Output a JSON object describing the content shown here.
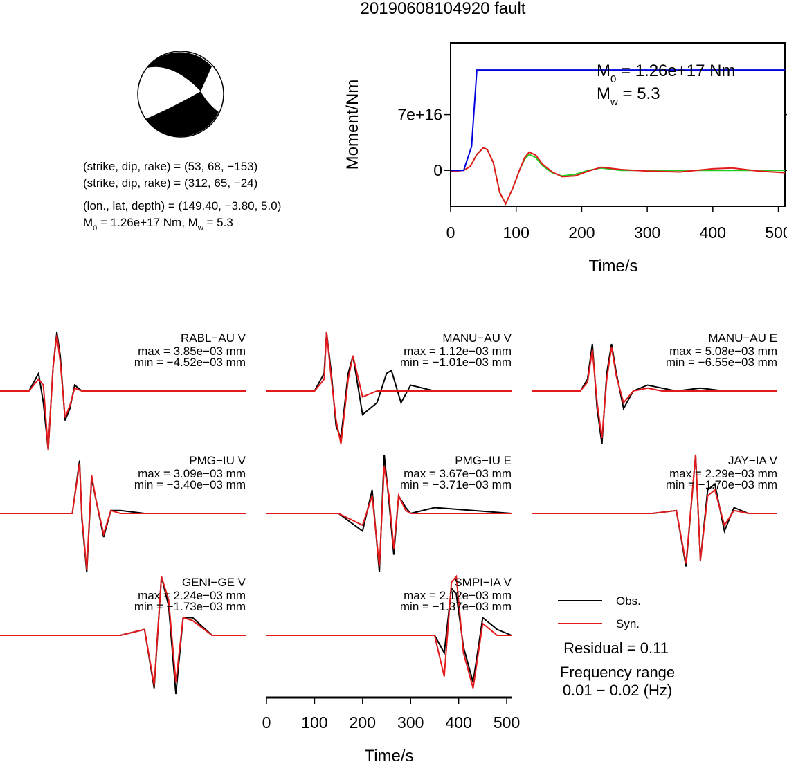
{
  "title": "20190608104920 fault",
  "mechanism": {
    "plane1": "(strike, dip, rake) = (53, 68, −153)",
    "plane2": "(strike, dip, rake) = (312, 65, −24)",
    "location": "(lon., lat, depth) = (149.40, −3.80, 5.0)",
    "moment_prefix": "M",
    "moment_sub": "0",
    "moment_mid": " = 1.26e+17 Nm, M",
    "mw_sub": "w",
    "moment_suffix": " = 5.3"
  },
  "colors": {
    "observed": "#000000",
    "synthetic": "#e31a1c",
    "moment_function": "#0000dd",
    "moment_rate_a": "#22cc22",
    "moment_rate_b": "#e31a1c"
  },
  "moment_plot": {
    "ylabel": "Moment/Nm",
    "xlabel": "Time/s",
    "annotation_m0_prefix": "M",
    "annotation_m0_sub": "0",
    "annotation_m0_value": " = 1.26e+17 Nm",
    "annotation_mw_prefix": "M",
    "annotation_mw_sub": "w",
    "annotation_mw_value": " = 5.3"
  },
  "stations": [
    {
      "name": "RABL−AU V",
      "max": "max = 3.85e−03 mm",
      "min": "min = −4.52e−03 mm"
    },
    {
      "name": "MANU−AU V",
      "max": "max = 1.12e−03 mm",
      "min": "min = −1.01e−03 mm"
    },
    {
      "name": "MANU−AU E",
      "max": "max = 5.08e−03 mm",
      "min": "min = −6.55e−03 mm"
    },
    {
      "name": "PMG−IU V",
      "max": "max = 3.09e−03 mm",
      "min": "min = −3.40e−03 mm"
    },
    {
      "name": "PMG−IU E",
      "max": "max = 3.67e−03 mm",
      "min": "min = −3.71e−03 mm"
    },
    {
      "name": "JAY−IA V",
      "max": "max = 2.29e−03 mm",
      "min": "min = −1.70e−03 mm"
    },
    {
      "name": "GENI−GE V",
      "max": "max = 2.24e−03 mm",
      "min": "min = −1.73e−03 mm"
    },
    {
      "name": "SMPI−IA V",
      "max": "max = 2.12e−03 mm",
      "min": "min = −1.37e−03 mm"
    }
  ],
  "legend": {
    "observed": "Obs.",
    "synthetic": "Syn."
  },
  "residual": "Residual = 0.11",
  "frequency_label": "Frequency range",
  "frequency_range": "0.01 − 0.02 (Hz)",
  "wave_axis": {
    "xlabel": "Time/s"
  },
  "chart_data": {
    "type": "line",
    "title": "20190608104920 fault",
    "moment_function": {
      "xlabel": "Time/s",
      "ylabel": "Moment/Nm",
      "xlim": [
        0,
        510
      ],
      "ylim": [
        -4.5e+16,
        1.6e+17
      ],
      "xticks": [
        0,
        100,
        200,
        300,
        400,
        500
      ],
      "yticks": [
        0,
        7e+16
      ],
      "ytick_labels": [
        "0",
        "7e+16"
      ],
      "x": [
        0,
        20,
        32,
        40,
        510
      ],
      "y": [
        0,
        0,
        3e+16,
        1.26e+17,
        1.26e+17
      ]
    },
    "moment_rate": {
      "green": {
        "x": [
          0,
          20,
          30,
          40,
          50,
          56,
          65,
          75,
          84,
          95,
          105,
          113,
          120,
          130,
          140,
          155,
          170,
          190,
          210,
          230,
          260,
          300,
          400,
          510
        ],
        "y": [
          -1500000000000000.0,
          0,
          5000000000000000.0,
          2e+16,
          2.85e+16,
          2.6e+16,
          1e+16,
          -2.8e+16,
          -4.2e+16,
          -2.2e+16,
          0,
          1.4e+16,
          2e+16,
          1.6e+16,
          6000000000000000.0,
          -3000000000000000.0,
          -7000000000000000.0,
          -5000000000000000.0,
          0,
          3000000000000000.0,
          0,
          0,
          0,
          0
        ]
      },
      "red": {
        "x": [
          0,
          20,
          30,
          40,
          50,
          56,
          65,
          75,
          84,
          95,
          105,
          113,
          120,
          130,
          140,
          155,
          170,
          190,
          210,
          230,
          260,
          300,
          350,
          400,
          430,
          470,
          510
        ],
        "y": [
          -1500000000000000.0,
          0,
          5000000000000000.0,
          2e+16,
          2.85e+16,
          2.6e+16,
          1e+16,
          -2.8e+16,
          -4.2e+16,
          -2.2e+16,
          0,
          1.6e+16,
          2.3e+16,
          1.9e+16,
          8000000000000000.0,
          -2000000000000000.0,
          -8000000000000000.0,
          -7000000000000000.0,
          -1000000000000000.0,
          4000000000000000.0,
          1000000000000000.0,
          -1000000000000000.0,
          -2000000000000000.0,
          2000000000000000.0,
          3000000000000000.0,
          -1000000000000000.0,
          -3000000000000000.0
        ]
      }
    },
    "waveforms": {
      "xlabel": "Time/s",
      "xlim": [
        0,
        510
      ],
      "xticks": [
        0,
        100,
        200,
        300,
        400,
        500
      ],
      "amplitude_range": [
        -1,
        1
      ],
      "traces": [
        {
          "station": "RABL−AU V",
          "obs": {
            "t": [
              0,
              60,
              80,
              90,
              100,
              110,
              118,
              125,
              135,
              145,
              155,
              170,
              200,
              300,
              510
            ],
            "a": [
              0,
              0,
              0.3,
              -0.2,
              -1.0,
              0.4,
              1.0,
              0.6,
              -0.5,
              -0.3,
              0.1,
              0,
              0,
              0,
              0
            ]
          },
          "syn": {
            "t": [
              0,
              60,
              80,
              90,
              100,
              110,
              118,
              125,
              135,
              145,
              155,
              170,
              200,
              300,
              510
            ],
            "a": [
              0,
              0,
              0.2,
              0.1,
              -1.0,
              0.4,
              0.95,
              0.5,
              -0.45,
              -0.25,
              0.05,
              0,
              0,
              0,
              0
            ]
          }
        },
        {
          "station": "MANU−AU V",
          "obs": {
            "t": [
              0,
              100,
              120,
              125,
              135,
              145,
              155,
              170,
              180,
              200,
              230,
              250,
              260,
              280,
              300,
              350,
              510
            ],
            "a": [
              0,
              0,
              0.3,
              1.0,
              0.3,
              -0.6,
              -0.8,
              0.3,
              0.6,
              -0.4,
              -0.2,
              0.3,
              0.35,
              -0.2,
              0.1,
              0,
              0
            ]
          },
          "syn": {
            "t": [
              0,
              100,
              120,
              125,
              135,
              145,
              155,
              170,
              180,
              200,
              230,
              250,
              260,
              280,
              300,
              350,
              510
            ],
            "a": [
              0,
              0,
              0.2,
              1.0,
              0.2,
              -0.5,
              -0.9,
              0.2,
              0.6,
              -0.1,
              0,
              0,
              0,
              0,
              0,
              0,
              0
            ]
          }
        },
        {
          "station": "MANU−AU E",
          "obs": {
            "t": [
              0,
              100,
              115,
              125,
              135,
              145,
              155,
              165,
              175,
              190,
              210,
              240,
              270,
              300,
              350,
              400,
              510
            ],
            "a": [
              0,
              0,
              0.2,
              0.8,
              -0.3,
              -0.9,
              0.3,
              0.8,
              0.3,
              -0.3,
              0,
              0.1,
              0.05,
              0,
              0.05,
              0,
              0
            ]
          },
          "syn": {
            "t": [
              0,
              100,
              115,
              125,
              135,
              145,
              155,
              165,
              175,
              190,
              210,
              240,
              270,
              300,
              350,
              400,
              510
            ],
            "a": [
              0,
              0,
              0.15,
              0.7,
              -0.2,
              -0.8,
              0.2,
              0.75,
              0.25,
              -0.2,
              0,
              0.05,
              0,
              0,
              0,
              0,
              0
            ]
          }
        },
        {
          "station": "PMG−IU V",
          "obs": {
            "t": [
              0,
              150,
              165,
              170,
              180,
              190,
              200,
              215,
              230,
              250,
              300,
              510
            ],
            "a": [
              0,
              0,
              0.9,
              -0.1,
              -1.0,
              0.6,
              0.2,
              -0.4,
              0.05,
              0.05,
              0,
              0
            ]
          },
          "syn": {
            "t": [
              0,
              150,
              165,
              170,
              180,
              190,
              200,
              215,
              230,
              250,
              300,
              510
            ],
            "a": [
              0,
              0,
              0.85,
              -0.05,
              -0.95,
              0.65,
              0.2,
              -0.35,
              0.05,
              0,
              0,
              0
            ]
          }
        },
        {
          "station": "PMG−IU E",
          "obs": {
            "t": [
              0,
              150,
              200,
              220,
              235,
              245,
              255,
              265,
              275,
              290,
              300,
              350,
              510
            ],
            "a": [
              0,
              0,
              -0.3,
              0.4,
              -1.0,
              1.0,
              0.2,
              -0.7,
              0.3,
              0.1,
              0,
              0.1,
              0
            ]
          },
          "syn": {
            "t": [
              0,
              150,
              200,
              220,
              235,
              245,
              255,
              265,
              275,
              290,
              300,
              350,
              510
            ],
            "a": [
              0,
              0,
              -0.2,
              0.3,
              -0.9,
              0.8,
              0.3,
              -0.6,
              0.3,
              0.05,
              0,
              0,
              0
            ]
          }
        },
        {
          "station": "JAY−IA V",
          "obs": {
            "t": [
              0,
              250,
              300,
              320,
              340,
              350,
              365,
              380,
              400,
              420,
              450,
              510
            ],
            "a": [
              0,
              0,
              0.05,
              -0.9,
              1.0,
              -0.8,
              0.4,
              0.5,
              -0.3,
              0.1,
              0,
              0
            ]
          },
          "syn": {
            "t": [
              0,
              250,
              300,
              320,
              340,
              350,
              365,
              380,
              400,
              420,
              450,
              510
            ],
            "a": [
              0,
              0,
              0.05,
              -0.85,
              1.0,
              -0.8,
              0.3,
              0.4,
              -0.2,
              0.05,
              0,
              0
            ]
          }
        },
        {
          "station": "GENI−GE V",
          "obs": {
            "t": [
              0,
              250,
              300,
              320,
              335,
              350,
              365,
              380,
              400,
              440,
              510
            ],
            "a": [
              0,
              0,
              0.1,
              -0.9,
              1.0,
              0.5,
              -1.0,
              0.3,
              0.3,
              0,
              0
            ]
          },
          "syn": {
            "t": [
              0,
              250,
              300,
              320,
              335,
              350,
              365,
              380,
              400,
              440,
              510
            ],
            "a": [
              0,
              0,
              0.1,
              -0.85,
              1.0,
              0.6,
              -0.8,
              0.3,
              0.25,
              0,
              0
            ]
          }
        },
        {
          "station": "SMPI−IA V",
          "obs": {
            "t": [
              0,
              250,
              350,
              370,
              385,
              395,
              410,
              430,
              450,
              480,
              510
            ],
            "a": [
              0,
              0,
              0,
              -0.3,
              0.8,
              0.7,
              -0.2,
              -0.8,
              0.3,
              0.1,
              0
            ]
          },
          "syn": {
            "t": [
              0,
              250,
              350,
              370,
              385,
              395,
              410,
              430,
              450,
              480,
              510
            ],
            "a": [
              0,
              0,
              0,
              -0.7,
              0.9,
              1.0,
              -0.3,
              -0.9,
              0.2,
              0,
              0
            ]
          }
        }
      ]
    }
  }
}
